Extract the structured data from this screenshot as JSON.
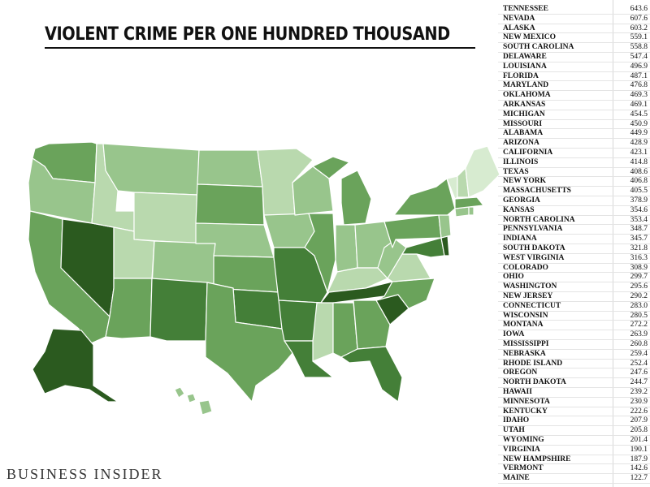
{
  "title": "VIOLENT CRIME PER ONE HUNDRED THOUSAND",
  "logo": "BUSINESS INSIDER",
  "colors": {
    "darkest": "#2b5a1f",
    "dark": "#447f38",
    "mid": "#6aa35b",
    "light": "#98c58c",
    "lighter": "#b9d9ae",
    "lightest": "#d7ebd0",
    "border": "#ffffff"
  },
  "table": [
    {
      "state": "TENNESSEE",
      "value": "643.6"
    },
    {
      "state": "NEVADA",
      "value": "607.6"
    },
    {
      "state": "ALASKA",
      "value": "603.2"
    },
    {
      "state": "NEW MEXICO",
      "value": "559.1"
    },
    {
      "state": "SOUTH CAROLINA",
      "value": "558.8"
    },
    {
      "state": "DELAWARE",
      "value": "547.4"
    },
    {
      "state": "LOUISIANA",
      "value": "496.9"
    },
    {
      "state": "FLORIDA",
      "value": "487.1"
    },
    {
      "state": "MARYLAND",
      "value": "476.8"
    },
    {
      "state": "OKLAHOMA",
      "value": "469.3"
    },
    {
      "state": "ARKANSAS",
      "value": "469.1"
    },
    {
      "state": "MICHIGAN",
      "value": "454.5"
    },
    {
      "state": "MISSOURI",
      "value": "450.9"
    },
    {
      "state": "ALABAMA",
      "value": "449.9"
    },
    {
      "state": "ARIZONA",
      "value": "428.9"
    },
    {
      "state": "CALIFORNIA",
      "value": "423.1"
    },
    {
      "state": "ILLINOIS",
      "value": "414.8"
    },
    {
      "state": "TEXAS",
      "value": "408.6"
    },
    {
      "state": "NEW YORK",
      "value": "406.8"
    },
    {
      "state": "MASSACHUSETTS",
      "value": "405.5"
    },
    {
      "state": "GEORGIA",
      "value": "378.9"
    },
    {
      "state": "KANSAS",
      "value": "354.6"
    },
    {
      "state": "NORTH CAROLINA",
      "value": "353.4"
    },
    {
      "state": "PENNSYLVANIA",
      "value": "348.7"
    },
    {
      "state": "INDIANA",
      "value": "345.7"
    },
    {
      "state": "SOUTH DAKOTA",
      "value": "321.8"
    },
    {
      "state": "WEST VIRGINIA",
      "value": "316.3"
    },
    {
      "state": "COLORADO",
      "value": "308.9"
    },
    {
      "state": "OHIO",
      "value": "299.7"
    },
    {
      "state": "WASHINGTON",
      "value": "295.6"
    },
    {
      "state": "NEW JERSEY",
      "value": "290.2"
    },
    {
      "state": "CONNECTICUT",
      "value": "283.0"
    },
    {
      "state": "WISCONSIN",
      "value": "280.5"
    },
    {
      "state": "MONTANA",
      "value": "272.2"
    },
    {
      "state": "IOWA",
      "value": "263.9"
    },
    {
      "state": "MISSISSIPPI",
      "value": "260.8"
    },
    {
      "state": "NEBRASKA",
      "value": "259.4"
    },
    {
      "state": "RHODE ISLAND",
      "value": "252.4"
    },
    {
      "state": "OREGON",
      "value": "247.6"
    },
    {
      "state": "NORTH DAKOTA",
      "value": "244.7"
    },
    {
      "state": "HAWAII",
      "value": "239.2"
    },
    {
      "state": "MINNESOTA",
      "value": "230.9"
    },
    {
      "state": "KENTUCKY",
      "value": "222.6"
    },
    {
      "state": "IDAHO",
      "value": "207.9"
    },
    {
      "state": "UTAH",
      "value": "205.8"
    },
    {
      "state": "WYOMING",
      "value": "201.4"
    },
    {
      "state": "VIRGINIA",
      "value": "190.1"
    },
    {
      "state": "NEW HAMPSHIRE",
      "value": "187.9"
    },
    {
      "state": "VERMONT",
      "value": "142.6"
    },
    {
      "state": "MAINE",
      "value": "122.7"
    }
  ]
}
